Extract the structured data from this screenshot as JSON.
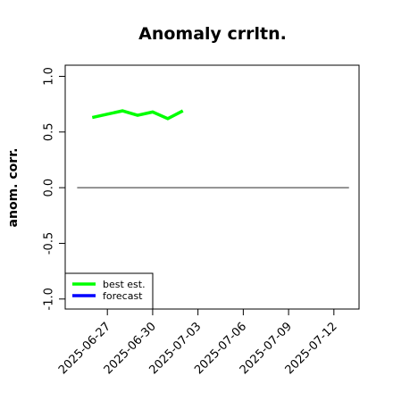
{
  "chart_data": {
    "type": "line",
    "title": "Anomaly crrltn.",
    "y_label": "anom. corr.",
    "x": [
      "2025-06-26",
      "2025-06-27",
      "2025-06-28",
      "2025-06-29",
      "2025-06-30",
      "2025-07-01",
      "2025-07-02"
    ],
    "series": [
      {
        "name": "best est.",
        "color": "#00ff00",
        "values": [
          0.63,
          0.66,
          0.69,
          0.65,
          0.68,
          0.62,
          0.69
        ]
      },
      {
        "name": "forecast",
        "color": "#0000ff",
        "values": [
          null,
          null,
          null,
          null,
          null,
          null,
          null
        ]
      }
    ],
    "xlim": [
      "2025-06-24T05:00",
      "2025-07-13T16:00"
    ],
    "xticks": [
      "2025-06-27",
      "2025-06-30",
      "2025-07-03",
      "2025-07-06",
      "2025-07-09",
      "2025-07-12"
    ],
    "xtick_label_colors": [
      "#000000",
      "#000000",
      "#228b22",
      "#000000",
      "#000000",
      "#000000"
    ],
    "ylim": [
      -1.09,
      1.1
    ],
    "yticks": [
      -1.0,
      -0.5,
      0.0,
      0.5,
      1.0
    ],
    "ytick_labels": [
      "-1.0",
      "-0.5",
      "0.0",
      "0.5",
      "1.0"
    ],
    "reference_line": {
      "value": 0,
      "from": "2025-06-25",
      "to": "2025-07-13",
      "color": "#555555"
    },
    "legend": "bottom-left",
    "grid": false
  }
}
